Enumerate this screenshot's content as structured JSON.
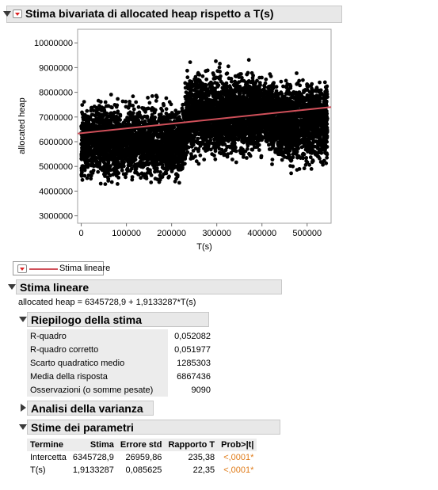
{
  "report_title": "Stima bivariata di allocated heap rispetto a T(s)",
  "chart_data": {
    "type": "scatter",
    "title": "",
    "xlabel": "T(s)",
    "ylabel": "allocated heap",
    "x_ticks": [
      "0",
      "100000",
      "200000",
      "300000",
      "400000",
      "500000"
    ],
    "y_ticks": [
      "3000000",
      "4000000",
      "5000000",
      "6000000",
      "7000000",
      "8000000",
      "9000000",
      "10000000"
    ],
    "xlim": [
      -8000,
      553000
    ],
    "ylim": [
      2700000,
      10550000
    ],
    "grid": false,
    "point_color": "#000000",
    "fit_line": {
      "intercept": 6345728.9,
      "slope": 1.9133287,
      "color": "#d0505a"
    },
    "clusters": [
      {
        "x_range": [
          0,
          230000
        ],
        "y_center": 6000000,
        "y_spread": 900000,
        "n": 2600
      },
      {
        "x_range": [
          230000,
          420000
        ],
        "y_center": 7100000,
        "y_spread": 1000000,
        "n": 2500
      },
      {
        "x_range": [
          420000,
          545000
        ],
        "y_center": 6800000,
        "y_spread": 1000000,
        "n": 1600
      }
    ]
  },
  "legend": {
    "label": "Stima lineare",
    "line_color": "#d0505a"
  },
  "linear_fit": {
    "title": "Stima lineare",
    "equation": "allocated heap = 6345728,9 + 1,9133287*T(s)"
  },
  "summary": {
    "title": "Riepilogo della stima",
    "rows": [
      {
        "label": "R-quadro",
        "value": "0,052082"
      },
      {
        "label": "R-quadro corretto",
        "value": "0,051977"
      },
      {
        "label": "Scarto quadratico medio",
        "value": "1285303"
      },
      {
        "label": "Media della risposta",
        "value": "6867436"
      },
      {
        "label": "Osservazioni (o somme pesate)",
        "value": "9090"
      }
    ]
  },
  "anova": {
    "title": "Analisi della varianza"
  },
  "params": {
    "title": "Stime dei parametri",
    "headers": [
      "Termine",
      "Stima",
      "Errore std",
      "Rapporto T",
      "Prob>|t|"
    ],
    "rows": [
      [
        "Intercetta",
        "6345728,9",
        "26959,86",
        "235,38",
        "<,0001*"
      ],
      [
        "T(s)",
        "1,9133287",
        "0,085625",
        "22,35",
        "<,0001*"
      ]
    ]
  }
}
